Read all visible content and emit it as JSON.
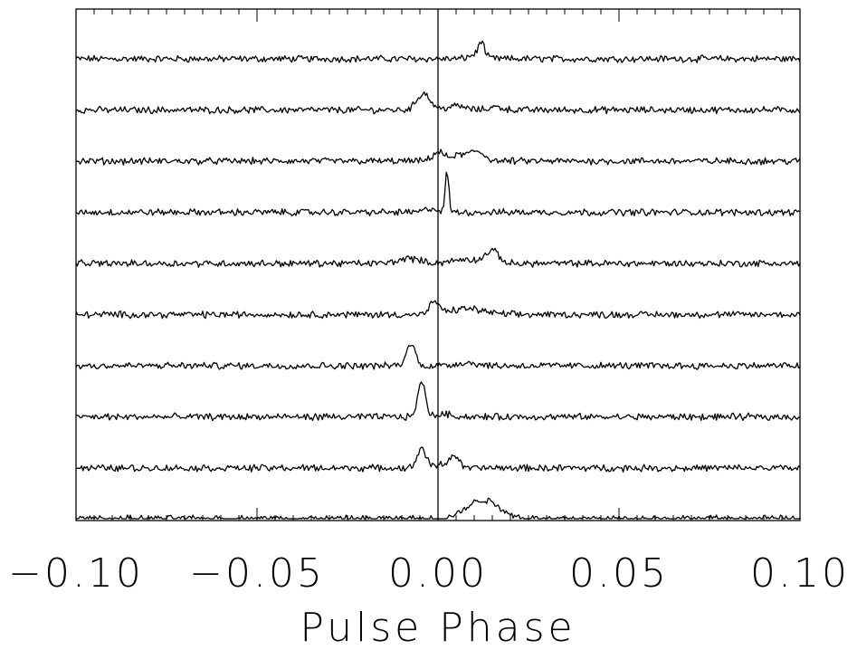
{
  "chart_data": {
    "type": "line",
    "title": "",
    "xlabel": "Pulse Phase",
    "ylabel": "",
    "xlim": [
      -0.1,
      0.1
    ],
    "x_tick_labels": [
      "−0.10",
      "−0.05",
      "0.00",
      "0.05",
      "0.10"
    ],
    "x_ticks": [
      -0.1,
      -0.05,
      0.0,
      0.05,
      0.1
    ],
    "x_minor_step": 0.005,
    "vertical_reference_line": 0.0,
    "grid": false,
    "legend": "none",
    "line_color": "#000000",
    "series": [
      {
        "peaks": [
          {
            "x": 0.012,
            "amp": 0.7,
            "w": 0.0007
          },
          {
            "x": 0.011,
            "amp": 0.25,
            "w": 0.002
          }
        ]
      },
      {
        "peaks": [
          {
            "x": -0.004,
            "amp": 0.85,
            "w": 0.0018
          },
          {
            "x": 0.005,
            "amp": 0.2,
            "w": 0.0025
          },
          {
            "x": 0.016,
            "amp": 0.15,
            "w": 0.002
          }
        ]
      },
      {
        "peaks": [
          {
            "x": 0.0,
            "amp": 0.45,
            "w": 0.0015
          },
          {
            "x": 0.006,
            "amp": 0.3,
            "w": 0.0025
          },
          {
            "x": 0.011,
            "amp": 0.45,
            "w": 0.002
          }
        ]
      },
      {
        "peaks": [
          {
            "x": 0.0025,
            "amp": 2.0,
            "w": 0.0005
          },
          {
            "x": -0.002,
            "amp": 0.2,
            "w": 0.0015
          }
        ]
      },
      {
        "peaks": [
          {
            "x": 0.015,
            "amp": 0.6,
            "w": 0.0018
          },
          {
            "x": -0.008,
            "amp": 0.25,
            "w": 0.003
          },
          {
            "x": 0.008,
            "amp": 0.2,
            "w": 0.004
          }
        ]
      },
      {
        "peaks": [
          {
            "x": -0.001,
            "amp": 0.65,
            "w": 0.0012
          },
          {
            "x": 0.008,
            "amp": 0.3,
            "w": 0.0045
          }
        ]
      },
      {
        "peaks": [
          {
            "x": -0.0075,
            "amp": 1.1,
            "w": 0.0012
          },
          {
            "x": 0.008,
            "amp": 0.15,
            "w": 0.003
          }
        ]
      },
      {
        "peaks": [
          {
            "x": -0.0045,
            "amp": 1.7,
            "w": 0.0011
          },
          {
            "x": 0.002,
            "amp": 0.15,
            "w": 0.002
          }
        ]
      },
      {
        "peaks": [
          {
            "x": -0.0045,
            "amp": 1.0,
            "w": 0.0012
          },
          {
            "x": 0.0045,
            "amp": 0.6,
            "w": 0.0012
          },
          {
            "x": 0.0015,
            "amp": 0.2,
            "w": 0.002
          }
        ]
      },
      {
        "peaks": [
          {
            "x": 0.0125,
            "amp": 0.95,
            "w": 0.0045
          }
        ]
      }
    ]
  }
}
